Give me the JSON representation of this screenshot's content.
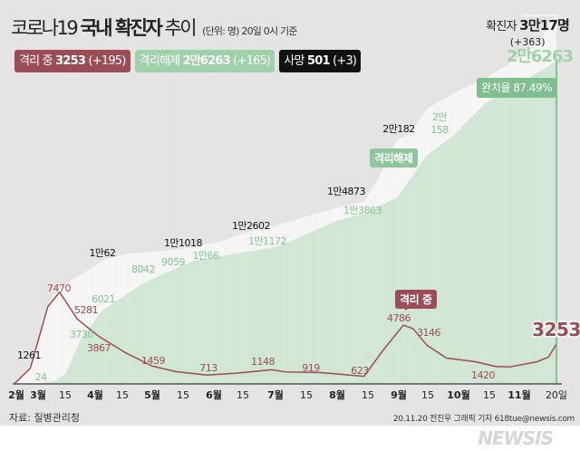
{
  "header": {
    "title_light": "코로나19",
    "title_bold": "국내 확진자",
    "title_end": "추이",
    "unit_note": "(단위: 명) 20일 0시 기준"
  },
  "legend": [
    {
      "label": "격리 중",
      "value": "3253",
      "delta": "(+195)",
      "color": "#9a4d56"
    },
    {
      "label": "격리해제",
      "value": "2만6263",
      "delta": "(+165)",
      "color": "#9fd2ab"
    },
    {
      "label": "사망",
      "value": "501",
      "delta": "(+3)",
      "color": "#111111"
    }
  ],
  "summary": {
    "total_label": "확진자",
    "total_value": "3만17명",
    "total_delta": "(+363)",
    "released_value": "2만6263",
    "recovery_rate": "완치율 87.49%"
  },
  "tags": {
    "released": "격리해제",
    "isolated": "격리 중"
  },
  "footer": {
    "source": "자료: 질병관리청",
    "credit": "20.11.20 전진우 그래픽 기자 618tue@newsis.com",
    "logo": "NEWSIS"
  },
  "chart_data": {
    "type": "area",
    "x_ticks": [
      "2월",
      "3월",
      "15",
      "4월",
      "15",
      "5월",
      "15",
      "6월",
      "15",
      "7월",
      "15",
      "8월",
      "15",
      "9월",
      "15",
      "10월",
      "15",
      "11월",
      "20일"
    ],
    "y_range": [
      0,
      30017
    ],
    "colors": {
      "confirmed": "#f7f7f6",
      "released": "#cfe7d4",
      "isolated": "#9a4d56"
    },
    "series": [
      {
        "key": "confirmed",
        "points": [
          [
            "02-18",
            31
          ],
          [
            "02-24",
            833
          ],
          [
            "02-29",
            3150
          ],
          [
            "03-05",
            6088
          ],
          [
            "03-10",
            7513
          ],
          [
            "03-15",
            8162
          ],
          [
            "03-20",
            8652
          ],
          [
            "03-26",
            9241
          ],
          [
            "04-03",
            10062
          ],
          [
            "04-15",
            10591
          ],
          [
            "04-30",
            10774
          ],
          [
            "05-14",
            11018
          ],
          [
            "05-31",
            11503
          ],
          [
            "06-20",
            12602
          ],
          [
            "06-30",
            12850
          ],
          [
            "07-15",
            13612
          ],
          [
            "07-31",
            14336
          ],
          [
            "08-14",
            14873
          ],
          [
            "08-20",
            16346
          ],
          [
            "08-31",
            19947
          ],
          [
            "09-05",
            20182
          ],
          [
            "09-15",
            22391
          ],
          [
            "09-30",
            23812
          ],
          [
            "10-15",
            24889
          ],
          [
            "10-31",
            26511
          ],
          [
            "11-10",
            27653
          ],
          [
            "11-20",
            30017
          ]
        ]
      },
      {
        "key": "released",
        "points": [
          [
            "02-18",
            12
          ],
          [
            "03-02",
            24
          ],
          [
            "03-10",
            288
          ],
          [
            "03-15",
            834
          ],
          [
            "03-23",
            3730
          ],
          [
            "04-03",
            6021
          ],
          [
            "04-22",
            8042
          ],
          [
            "05-05",
            9059
          ],
          [
            "05-20",
            10066
          ],
          [
            "07-01",
            11172
          ],
          [
            "07-31",
            13280
          ],
          [
            "08-14",
            13863
          ],
          [
            "08-31",
            15198
          ],
          [
            "09-15",
            18616
          ],
          [
            "09-28",
            20158
          ],
          [
            "10-15",
            22882
          ],
          [
            "10-31",
            24394
          ],
          [
            "11-20",
            26263
          ]
        ]
      },
      {
        "key": "isolated",
        "points": [
          [
            "02-18",
            20
          ],
          [
            "02-26",
            1261
          ],
          [
            "03-01",
            3500
          ],
          [
            "03-06",
            6300
          ],
          [
            "03-12",
            7470
          ],
          [
            "03-21",
            5281
          ],
          [
            "04-01",
            3867
          ],
          [
            "04-15",
            2500
          ],
          [
            "04-28",
            1459
          ],
          [
            "05-10",
            1000
          ],
          [
            "05-26",
            713
          ],
          [
            "06-10",
            880
          ],
          [
            "06-28",
            1148
          ],
          [
            "07-05",
            980
          ],
          [
            "07-23",
            919
          ],
          [
            "08-14",
            623
          ],
          [
            "08-24",
            2800
          ],
          [
            "09-03",
            4786
          ],
          [
            "09-08",
            4500
          ],
          [
            "09-15",
            3146
          ],
          [
            "09-25",
            2100
          ],
          [
            "10-10",
            1800
          ],
          [
            "10-20",
            1420
          ],
          [
            "10-27",
            1380
          ],
          [
            "11-10",
            1800
          ],
          [
            "11-16",
            2200
          ],
          [
            "11-20",
            3253
          ]
        ]
      }
    ],
    "annotations": {
      "confirmed": [
        "1261",
        "1만62",
        "1만1018",
        "1만2602",
        "1만4873",
        "2만182"
      ],
      "released": [
        "24",
        "3730",
        "6021",
        "8042",
        "9059",
        "1만66",
        "1만1172",
        "1만3863",
        "2만",
        "158"
      ],
      "isolated": [
        "7470",
        "5281",
        "3867",
        "1459",
        "713",
        "1148",
        "919",
        "623",
        "4786",
        "3146",
        "1420",
        "3253"
      ]
    }
  }
}
